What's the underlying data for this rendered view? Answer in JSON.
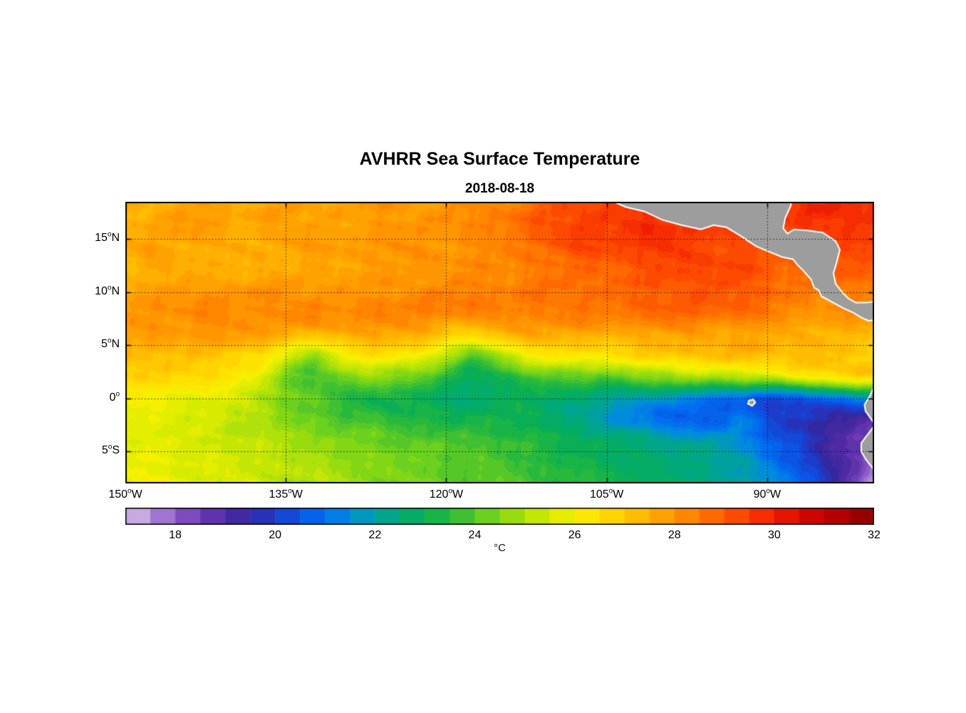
{
  "chart_data": {
    "type": "heatmap",
    "title": "AVHRR Sea Surface Temperature",
    "subtitle": "2018-08-18",
    "colorbar_label": "°C",
    "lon_range": [
      -150,
      -80
    ],
    "lat_range": [
      -8,
      18.5
    ],
    "colorbar_range": [
      17,
      32
    ],
    "colorbar_ticks": [
      18,
      20,
      22,
      24,
      26,
      28,
      30,
      32
    ],
    "xticks": [
      {
        "v": -150,
        "t": "150",
        "s": "W"
      },
      {
        "v": -135,
        "t": "135",
        "s": "W"
      },
      {
        "v": -120,
        "t": "120",
        "s": "W"
      },
      {
        "v": -105,
        "t": "105",
        "s": "W"
      },
      {
        "v": -90,
        "t": "90",
        "s": "W"
      }
    ],
    "yticks": [
      {
        "v": 15,
        "t": "15",
        "s": "N"
      },
      {
        "v": 10,
        "t": "10",
        "s": "N"
      },
      {
        "v": 5,
        "t": "5",
        "s": "N"
      },
      {
        "v": 0,
        "t": "0",
        "s": ""
      },
      {
        "v": -5,
        "t": "5",
        "s": "S"
      }
    ],
    "grid": {
      "lons": [
        -135,
        -120,
        -105,
        -90
      ],
      "lats": [
        15,
        10,
        5,
        0,
        -5
      ]
    },
    "land_color": "#9d9d9d",
    "coast_color": "#ffffff",
    "colormap": [
      [
        17.0,
        "#dcc5ec"
      ],
      [
        17.5,
        "#b08ed6"
      ],
      [
        18.0,
        "#8f5cc8"
      ],
      [
        18.5,
        "#6e3cb4"
      ],
      [
        19.0,
        "#502aa4"
      ],
      [
        19.5,
        "#3428a0"
      ],
      [
        20.0,
        "#1c3ccc"
      ],
      [
        20.5,
        "#0a55e6"
      ],
      [
        21.0,
        "#006ef0"
      ],
      [
        21.5,
        "#008cdc"
      ],
      [
        22.0,
        "#00a0a0"
      ],
      [
        22.5,
        "#00aa78"
      ],
      [
        23.0,
        "#0aaf55"
      ],
      [
        23.5,
        "#28b93c"
      ],
      [
        24.0,
        "#55c828"
      ],
      [
        24.5,
        "#82d714"
      ],
      [
        25.0,
        "#afe10a"
      ],
      [
        25.5,
        "#d7eb00"
      ],
      [
        26.0,
        "#f5f000"
      ],
      [
        26.5,
        "#ffe100"
      ],
      [
        27.0,
        "#ffc800"
      ],
      [
        27.5,
        "#ffaf00"
      ],
      [
        28.0,
        "#ff9600"
      ],
      [
        28.5,
        "#ff7800"
      ],
      [
        29.0,
        "#ff5a00"
      ],
      [
        29.5,
        "#fa3c00"
      ],
      [
        30.0,
        "#f01e00"
      ],
      [
        30.5,
        "#d70a00"
      ],
      [
        31.0,
        "#c30000"
      ],
      [
        31.5,
        "#a50000"
      ],
      [
        32.0,
        "#8c0000"
      ]
    ],
    "sst_grid": {
      "lons": [
        -150,
        -147.5,
        -145,
        -142.5,
        -140,
        -137.5,
        -135,
        -132.5,
        -130,
        -127.5,
        -125,
        -122.5,
        -120,
        -117.5,
        -115,
        -112.5,
        -110,
        -107.5,
        -105,
        -102.5,
        -100,
        -97.5,
        -95,
        -92.5,
        -90,
        -87.5,
        -85,
        -82.5,
        -80
      ],
      "lats": [
        18.5,
        16,
        14,
        12,
        10,
        8,
        6,
        4,
        2,
        0,
        -2,
        -4,
        -6,
        -8
      ],
      "values": [
        [
          27.6,
          27.5,
          27.6,
          27.8,
          27.6,
          27.7,
          27.8,
          27.7,
          27.8,
          27.9,
          28.0,
          27.9,
          28.0,
          28.1,
          28.3,
          28.6,
          29.0,
          29.3,
          29.5,
          29.6,
          29.6,
          29.6,
          29.5,
          29.4,
          29.4,
          29.6,
          29.8,
          29.9,
          29.8
        ],
        [
          27.5,
          27.6,
          27.9,
          27.7,
          27.6,
          27.7,
          27.8,
          27.8,
          27.9,
          27.8,
          28.0,
          28.0,
          28.0,
          28.1,
          28.4,
          28.9,
          29.2,
          29.5,
          29.6,
          29.7,
          29.7,
          29.6,
          29.5,
          29.3,
          29.4,
          29.5,
          29.6,
          29.7,
          29.6
        ],
        [
          27.4,
          27.8,
          27.6,
          27.5,
          27.6,
          27.6,
          27.7,
          27.8,
          27.8,
          27.9,
          27.9,
          28.0,
          28.0,
          28.1,
          28.3,
          28.6,
          28.9,
          29.2,
          29.3,
          29.4,
          29.5,
          29.4,
          29.3,
          29.2,
          29.1,
          29.0,
          29.1,
          29.2,
          29.3
        ],
        [
          27.3,
          27.5,
          27.6,
          27.4,
          27.5,
          27.6,
          27.6,
          27.7,
          27.8,
          27.8,
          27.9,
          27.9,
          28.0,
          28.1,
          28.2,
          28.4,
          28.6,
          28.8,
          28.9,
          29.0,
          29.2,
          29.3,
          29.3,
          29.2,
          29.0,
          28.8,
          28.9,
          29.0,
          29.1
        ],
        [
          27.8,
          27.9,
          27.8,
          27.9,
          28.0,
          28.0,
          28.1,
          28.0,
          28.1,
          28.0,
          28.1,
          28.2,
          28.2,
          28.3,
          28.3,
          28.5,
          28.6,
          28.7,
          28.8,
          28.9,
          29.0,
          29.1,
          29.0,
          28.9,
          28.8,
          28.5,
          28.3,
          28.5,
          28.4
        ],
        [
          27.9,
          28.0,
          28.1,
          28.2,
          28.1,
          28.2,
          28.2,
          28.3,
          28.2,
          28.3,
          28.2,
          28.3,
          28.3,
          28.2,
          28.3,
          28.4,
          28.4,
          28.5,
          28.5,
          28.6,
          28.7,
          28.8,
          28.7,
          28.6,
          28.5,
          28.2,
          28.0,
          28.1,
          28.0
        ],
        [
          27.7,
          27.8,
          27.8,
          27.9,
          27.9,
          27.8,
          27.6,
          27.2,
          27.5,
          27.7,
          27.6,
          27.4,
          26.9,
          26.6,
          27.2,
          27.6,
          27.7,
          27.6,
          27.5,
          27.6,
          27.7,
          27.7,
          27.6,
          27.6,
          27.6,
          27.5,
          27.5,
          27.4,
          27.2
        ],
        [
          27.4,
          27.2,
          27.1,
          27.0,
          26.9,
          26.6,
          25.6,
          24.8,
          25.9,
          26.3,
          26.2,
          26.0,
          25.1,
          23.9,
          25.0,
          25.9,
          26.2,
          26.3,
          26.4,
          26.6,
          26.8,
          27.0,
          27.1,
          27.2,
          27.2,
          27.2,
          27.2,
          27.1,
          26.9
        ],
        [
          26.9,
          26.7,
          26.6,
          26.5,
          26.3,
          25.7,
          24.5,
          23.9,
          24.4,
          24.7,
          24.5,
          24.1,
          23.4,
          22.7,
          23.2,
          23.7,
          24.1,
          24.2,
          24.1,
          24.3,
          24.6,
          24.8,
          24.7,
          24.9,
          25.2,
          25.7,
          26.2,
          26.6,
          26.8
        ],
        [
          26.1,
          25.9,
          25.9,
          25.7,
          25.5,
          25.1,
          24.5,
          24.0,
          23.6,
          23.3,
          23.2,
          23.0,
          22.8,
          22.6,
          22.8,
          23.0,
          22.8,
          22.5,
          22.2,
          22.0,
          21.8,
          21.4,
          21.2,
          21.0,
          20.3,
          20.6,
          21.0,
          21.2,
          21.8
        ],
        [
          25.8,
          25.7,
          25.5,
          25.4,
          25.2,
          25.0,
          24.6,
          24.3,
          24.0,
          23.8,
          23.5,
          23.3,
          23.1,
          23.0,
          23.2,
          23.0,
          22.8,
          22.4,
          21.9,
          21.4,
          21.0,
          20.7,
          20.6,
          21.1,
          20.4,
          19.9,
          19.7,
          19.4,
          19.0
        ],
        [
          25.8,
          25.7,
          25.5,
          25.4,
          25.3,
          25.1,
          25.0,
          24.8,
          24.5,
          24.3,
          24.2,
          24.0,
          23.8,
          23.8,
          23.6,
          23.4,
          23.2,
          23.0,
          22.8,
          22.5,
          22.3,
          22.0,
          21.8,
          21.5,
          20.8,
          20.2,
          19.5,
          19.0,
          18.6
        ],
        [
          25.9,
          25.8,
          25.6,
          25.5,
          25.4,
          25.3,
          25.2,
          25.0,
          24.8,
          24.6,
          24.4,
          24.2,
          24.0,
          23.9,
          23.8,
          23.6,
          23.4,
          23.2,
          23.0,
          22.8,
          22.6,
          22.4,
          22.2,
          21.8,
          21.2,
          20.5,
          19.8,
          19.0,
          18.0
        ],
        [
          26.0,
          25.9,
          25.8,
          25.6,
          25.4,
          25.3,
          25.1,
          25.0,
          24.9,
          24.7,
          24.5,
          24.3,
          24.2,
          24.1,
          24.0,
          23.8,
          23.6,
          23.4,
          23.2,
          23.0,
          22.8,
          22.5,
          22.3,
          22.0,
          21.6,
          21.0,
          20.2,
          18.8,
          17.3
        ]
      ]
    },
    "land": {
      "central_america": [
        [
          -104.8,
          18.7
        ],
        [
          -103.2,
          18.0
        ],
        [
          -101.5,
          17.6
        ],
        [
          -99.8,
          16.8
        ],
        [
          -98.0,
          16.3
        ],
        [
          -96.2,
          15.9
        ],
        [
          -95.0,
          16.3
        ],
        [
          -93.8,
          16.1
        ],
        [
          -92.5,
          15.3
        ],
        [
          -91.0,
          14.3
        ],
        [
          -89.8,
          13.8
        ],
        [
          -88.6,
          13.3
        ],
        [
          -87.6,
          13.1
        ],
        [
          -87.2,
          12.6
        ],
        [
          -86.6,
          12.0
        ],
        [
          -85.9,
          11.2
        ],
        [
          -85.6,
          10.4
        ],
        [
          -85.2,
          10.2
        ],
        [
          -84.9,
          9.6
        ],
        [
          -83.8,
          9.0
        ],
        [
          -82.9,
          8.5
        ],
        [
          -82.0,
          8.1
        ],
        [
          -81.2,
          7.6
        ],
        [
          -80.5,
          7.3
        ],
        [
          -79.8,
          7.4
        ],
        [
          -79.4,
          7.7
        ],
        [
          -79.2,
          8.8
        ],
        [
          -79.9,
          9.1
        ],
        [
          -80.8,
          9.0
        ],
        [
          -81.7,
          9.0
        ],
        [
          -82.4,
          9.4
        ],
        [
          -83.0,
          10.0
        ],
        [
          -83.6,
          10.8
        ],
        [
          -83.8,
          11.8
        ],
        [
          -83.5,
          12.8
        ],
        [
          -83.2,
          14.0
        ],
        [
          -83.6,
          14.8
        ],
        [
          -84.8,
          15.6
        ],
        [
          -86.2,
          15.8
        ],
        [
          -87.5,
          15.9
        ],
        [
          -88.1,
          15.5
        ],
        [
          -88.5,
          16.0
        ],
        [
          -88.3,
          17.0
        ],
        [
          -87.8,
          18.1
        ],
        [
          -87.7,
          18.7
        ]
      ],
      "south_america": [
        [
          -79.6,
          1.4
        ],
        [
          -80.1,
          0.9
        ],
        [
          -80.4,
          0.2
        ],
        [
          -80.9,
          -0.6
        ],
        [
          -80.8,
          -1.2
        ],
        [
          -80.3,
          -1.9
        ],
        [
          -79.9,
          -2.5
        ],
        [
          -80.3,
          -3.0
        ],
        [
          -80.6,
          -3.4
        ],
        [
          -81.2,
          -4.2
        ],
        [
          -81.2,
          -5.0
        ],
        [
          -80.8,
          -5.7
        ],
        [
          -80.1,
          -6.6
        ],
        [
          -79.6,
          -7.5
        ],
        [
          -79.4,
          -8.3
        ],
        [
          -78.0,
          -8.3
        ],
        [
          -78.0,
          1.4
        ]
      ],
      "galapagos": [
        [
          -91.7,
          -0.2
        ],
        [
          -91.3,
          -0.1
        ],
        [
          -91.1,
          -0.4
        ],
        [
          -91.4,
          -0.7
        ],
        [
          -91.8,
          -0.5
        ]
      ]
    }
  }
}
